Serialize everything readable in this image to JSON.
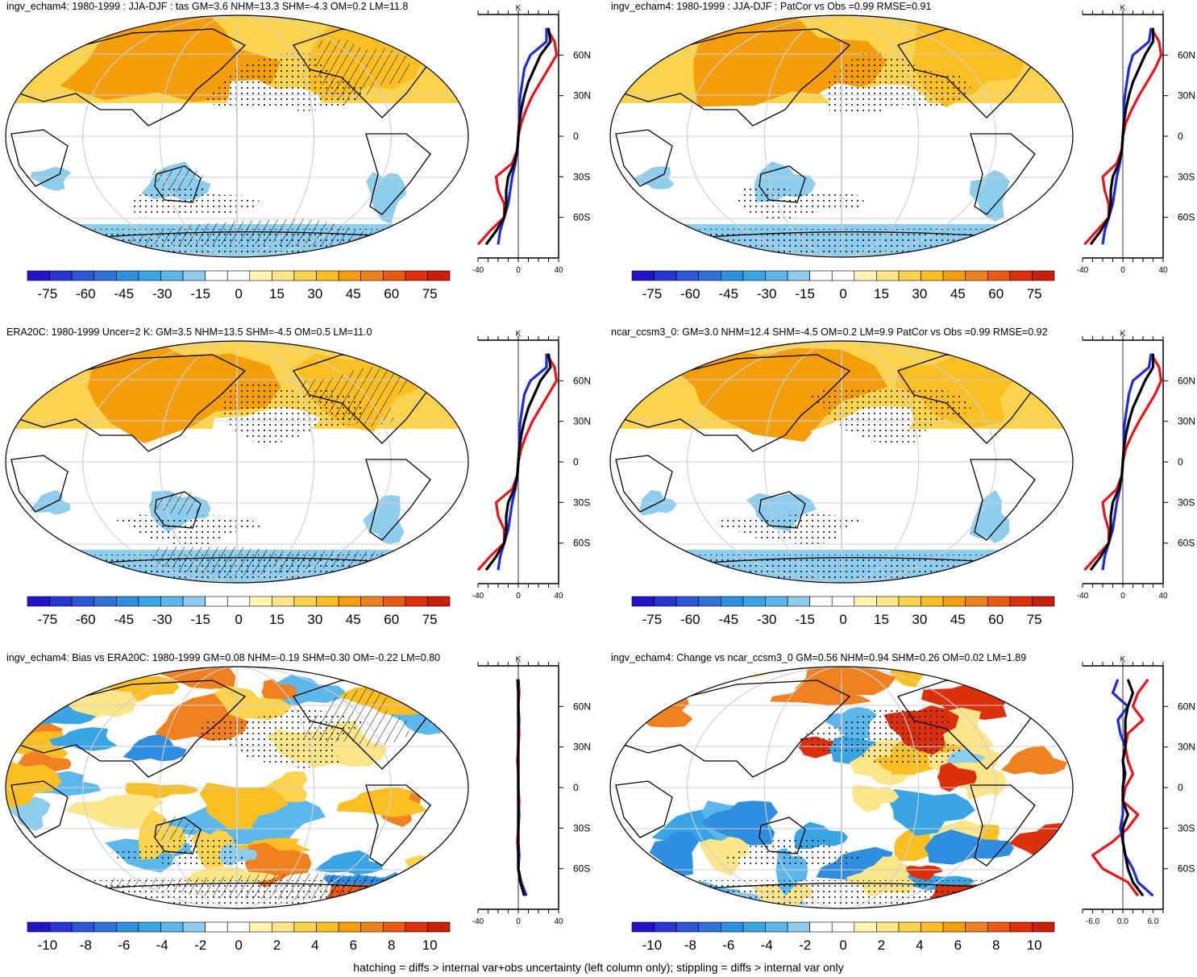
{
  "footer": "hatching = diffs > internal var+obs uncertainty (left column only); stippling = diffs > internal var only",
  "colors": {
    "warm": [
      "#fff6b3",
      "#fde68a",
      "#fcd34d",
      "#fbbf24",
      "#f59e0b",
      "#f08020",
      "#ea5a14",
      "#dc2f0c",
      "#c81e0a"
    ],
    "cool": [
      "#8ecdee",
      "#5cb8ea",
      "#39a5e4",
      "#2f8ee0",
      "#2f72dc",
      "#2c55d8",
      "#2835d2",
      "#2414c8"
    ],
    "profile_obs": "#e8131b",
    "profile_model": "#1e2bd6",
    "profile_mean": "#000000"
  },
  "panels": [
    {
      "title": "ingv_echam4: 1980-1999 : JJA-DJF : tas GM=3.6 NHM=13.3 SHM=-4.3 OM=0.2 LM=11.8",
      "colorbar_ticks": [
        "-75",
        "-60",
        "-45",
        "-30",
        "-15",
        "0",
        "15",
        "30",
        "45",
        "60",
        "75"
      ],
      "profile": {
        "unit": "K",
        "xticks": [
          "-40",
          "0",
          "40"
        ],
        "xrange": [
          -40,
          40
        ],
        "has_blue": true
      }
    },
    {
      "title": "ingv_echam4: 1980-1999 : JJA-DJF : PatCor vs Obs =0.99 RMSE=0.91",
      "colorbar_ticks": [
        "-75",
        "-60",
        "-45",
        "-30",
        "-15",
        "0",
        "15",
        "30",
        "45",
        "60",
        "75"
      ],
      "profile": {
        "unit": "K",
        "xticks": [
          "-40",
          "0",
          "40"
        ],
        "xrange": [
          -40,
          40
        ],
        "has_blue": true
      }
    },
    {
      "title": "ERA20C: 1980-1999 Uncer=2 K: GM=3.5 NHM=13.5 SHM=-4.5 OM=0.5 LM=11.0",
      "colorbar_ticks": [
        "-75",
        "-60",
        "-45",
        "-30",
        "-15",
        "0",
        "15",
        "30",
        "45",
        "60",
        "75"
      ],
      "profile": {
        "unit": "K",
        "xticks": [
          "-40",
          "0",
          "40"
        ],
        "xrange": [
          -40,
          40
        ],
        "has_blue": true
      }
    },
    {
      "title": "ncar_ccsm3_0: GM=3.0 NHM=12.4 SHM=-4.5 OM=0.2 LM=9.9 PatCor vs Obs =0.99 RMSE=0.92",
      "colorbar_ticks": [
        "-75",
        "-60",
        "-45",
        "-30",
        "-15",
        "0",
        "15",
        "30",
        "45",
        "60",
        "75"
      ],
      "profile": {
        "unit": "K",
        "xticks": [
          "-40",
          "0",
          "40"
        ],
        "xrange": [
          -40,
          40
        ],
        "has_blue": true
      }
    },
    {
      "title": "ingv_echam4: Bias vs ERA20C: 1980-1999 GM=0.08 NHM=-0.19 SHM=0.30 OM=-0.22 LM=0.80",
      "colorbar_ticks": [
        "-10",
        "-8",
        "-6",
        "-4",
        "-2",
        "0",
        "2",
        "4",
        "6",
        "8",
        "10"
      ],
      "profile": {
        "unit": "K",
        "xticks": [
          "-40",
          "0",
          "40"
        ],
        "xrange": [
          -40,
          40
        ],
        "has_blue": true
      }
    },
    {
      "title": "ingv_echam4: Change vs ncar_ccsm3_0 GM=0.56 NHM=0.94 SHM=0.26 OM=0.02 LM=1.89",
      "colorbar_ticks": [
        "-10",
        "-8",
        "-6",
        "-4",
        "-2",
        "0",
        "2",
        "4",
        "6",
        "8",
        "10"
      ],
      "profile": {
        "unit": "K",
        "xticks": [
          "-6.0",
          "0.0",
          "6.0"
        ],
        "xrange": [
          -8,
          8
        ],
        "has_blue": true
      }
    }
  ],
  "chart_data": [
    {
      "type": "heatmap",
      "title": "ingv_echam4: 1980-1999 : JJA-DJF : tas GM=3.6 NHM=13.3 SHM=-4.3 OM=0.2 LM=11.8",
      "lat_labels": [
        "60N",
        "30N",
        "0",
        "30S",
        "60S"
      ],
      "colorbar_ticks": [
        -75,
        -60,
        -45,
        -30,
        -15,
        0,
        15,
        30,
        45,
        60,
        75
      ]
    },
    {
      "type": "line",
      "unit": "K",
      "xlim": [
        -40,
        40
      ],
      "xticks": [
        -40,
        0,
        40
      ],
      "lat": [
        80,
        70,
        60,
        50,
        40,
        30,
        20,
        10,
        0,
        -10,
        -20,
        -30,
        -40,
        -50,
        -60,
        -70,
        -80
      ],
      "series": [
        {
          "values": [
            28,
            36,
            38,
            30,
            22,
            14,
            8,
            3,
            0,
            -1,
            -6,
            -22,
            -20,
            -14,
            -14,
            -28,
            -40
          ]
        },
        {
          "values": [
            28,
            28,
            12,
            6,
            4,
            2,
            1,
            1,
            0,
            -1,
            -3,
            -6,
            -8,
            -10,
            -14,
            -18,
            -20
          ]
        },
        {
          "values": [
            30,
            32,
            22,
            16,
            10,
            6,
            3,
            1,
            0,
            -1,
            -4,
            -10,
            -12,
            -12,
            -14,
            -22,
            -32
          ]
        }
      ]
    },
    {
      "type": "heatmap",
      "title": "ingv_echam4: 1980-1999 : JJA-DJF : PatCor vs Obs =0.99 RMSE=0.91",
      "lat_labels": [
        "60N",
        "30N",
        "0",
        "30S",
        "60S"
      ],
      "colorbar_ticks": [
        -75,
        -60,
        -45,
        -30,
        -15,
        0,
        15,
        30,
        45,
        60,
        75
      ]
    },
    {
      "type": "line",
      "unit": "K",
      "xlim": [
        -40,
        40
      ],
      "xticks": [
        -40,
        0,
        40
      ],
      "lat": [
        80,
        70,
        60,
        50,
        40,
        30,
        20,
        10,
        0,
        -10,
        -20,
        -30,
        -40,
        -50,
        -60,
        -70,
        -80
      ],
      "series": [
        {
          "values": [
            28,
            36,
            38,
            32,
            24,
            16,
            9,
            3,
            0,
            -1,
            -6,
            -20,
            -18,
            -14,
            -14,
            -26,
            -38
          ]
        },
        {
          "values": [
            28,
            26,
            10,
            6,
            4,
            2,
            1,
            1,
            0,
            -1,
            -3,
            -6,
            -8,
            -10,
            -14,
            -18,
            -20
          ]
        },
        {
          "values": [
            30,
            30,
            22,
            16,
            10,
            6,
            3,
            1,
            0,
            -1,
            -4,
            -10,
            -12,
            -12,
            -14,
            -22,
            -32
          ]
        }
      ]
    },
    {
      "type": "heatmap",
      "title": "ERA20C: 1980-1999 Uncer=2 K: GM=3.5 NHM=13.5 SHM=-4.5 OM=0.5 LM=11.0",
      "lat_labels": [
        "60N",
        "30N",
        "0",
        "30S",
        "60S"
      ],
      "colorbar_ticks": [
        -75,
        -60,
        -45,
        -30,
        -15,
        0,
        15,
        30,
        45,
        60,
        75
      ]
    },
    {
      "type": "line",
      "unit": "K",
      "xlim": [
        -40,
        40
      ],
      "xticks": [
        -40,
        0,
        40
      ],
      "lat": [
        80,
        70,
        60,
        50,
        40,
        30,
        20,
        10,
        0,
        -10,
        -20,
        -30,
        -40,
        -50,
        -60,
        -70,
        -80
      ],
      "series": [
        {
          "values": [
            28,
            36,
            38,
            30,
            22,
            14,
            8,
            3,
            0,
            -1,
            -6,
            -22,
            -20,
            -14,
            -14,
            -28,
            -40
          ]
        },
        {
          "values": [
            28,
            28,
            12,
            6,
            4,
            2,
            1,
            1,
            0,
            -1,
            -3,
            -6,
            -8,
            -10,
            -14,
            -18,
            -20
          ]
        },
        {
          "values": [
            30,
            32,
            22,
            16,
            10,
            6,
            3,
            1,
            0,
            -1,
            -4,
            -10,
            -12,
            -12,
            -14,
            -22,
            -32
          ]
        }
      ]
    },
    {
      "type": "heatmap",
      "title": "ncar_ccsm3_0: GM=3.0 NHM=12.4 SHM=-4.5 OM=0.2 LM=9.9 PatCor vs Obs =0.99 RMSE=0.92",
      "lat_labels": [
        "60N",
        "30N",
        "0",
        "30S",
        "60S"
      ],
      "colorbar_ticks": [
        -75,
        -60,
        -45,
        -30,
        -15,
        0,
        15,
        30,
        45,
        60,
        75
      ]
    },
    {
      "type": "line",
      "unit": "K",
      "xlim": [
        -40,
        40
      ],
      "xticks": [
        -40,
        0,
        40
      ],
      "lat": [
        80,
        70,
        60,
        50,
        40,
        30,
        20,
        10,
        0,
        -10,
        -20,
        -30,
        -40,
        -50,
        -60,
        -70,
        -80
      ],
      "series": [
        {
          "values": [
            28,
            36,
            38,
            32,
            24,
            16,
            9,
            3,
            0,
            -1,
            -6,
            -20,
            -18,
            -14,
            -14,
            -26,
            -38
          ]
        },
        {
          "values": [
            28,
            26,
            10,
            6,
            4,
            2,
            1,
            1,
            0,
            -1,
            -3,
            -6,
            -8,
            -10,
            -14,
            -18,
            -20
          ]
        },
        {
          "values": [
            30,
            30,
            22,
            16,
            10,
            6,
            3,
            1,
            0,
            -1,
            -4,
            -10,
            -12,
            -12,
            -14,
            -22,
            -32
          ]
        }
      ]
    },
    {
      "type": "heatmap",
      "title": "ingv_echam4: Bias vs ERA20C: 1980-1999 GM=0.08 NHM=-0.19 SHM=0.30 OM=-0.22 LM=0.80",
      "lat_labels": [
        "60N",
        "30N",
        "0",
        "30S",
        "60S"
      ],
      "colorbar_ticks": [
        -10,
        -8,
        -6,
        -4,
        -2,
        0,
        2,
        4,
        6,
        8,
        10
      ]
    },
    {
      "type": "line",
      "unit": "K",
      "xlim": [
        -40,
        40
      ],
      "xticks": [
        -40,
        0,
        40
      ],
      "lat": [
        80,
        70,
        60,
        50,
        40,
        30,
        20,
        10,
        0,
        -10,
        -20,
        -30,
        -40,
        -50,
        -60,
        -70,
        -80
      ],
      "series": [
        {
          "values": [
            0,
            1,
            0,
            0,
            1,
            0,
            -1,
            0,
            0,
            1,
            0,
            0,
            -1,
            0,
            0,
            2,
            8
          ]
        },
        {
          "values": [
            -1,
            0,
            0,
            1,
            0,
            0,
            0,
            0,
            0,
            0,
            1,
            0,
            0,
            1,
            0,
            3,
            8
          ]
        },
        {
          "values": [
            0,
            0,
            0,
            0,
            0,
            0,
            0,
            0,
            0,
            0,
            0,
            0,
            0,
            0,
            0,
            2,
            6
          ]
        }
      ]
    },
    {
      "type": "heatmap",
      "title": "ingv_echam4: Change vs ncar_ccsm3_0 GM=0.56 NHM=0.94 SHM=0.26 OM=0.02 LM=1.89",
      "lat_labels": [
        "60N",
        "30N",
        "0",
        "30S",
        "60S"
      ],
      "colorbar_ticks": [
        -10,
        -8,
        -6,
        -4,
        -2,
        0,
        2,
        4,
        6,
        8,
        10
      ]
    },
    {
      "type": "line",
      "unit": "K",
      "xlim": [
        -8,
        8
      ],
      "xticks": [
        -6.0,
        0.0,
        6.0
      ],
      "lat": [
        80,
        70,
        60,
        50,
        40,
        30,
        20,
        10,
        0,
        -10,
        -20,
        -30,
        -40,
        -50,
        -60,
        -70,
        -80
      ],
      "series": [
        {
          "values": [
            5,
            3,
            2,
            4,
            1,
            0.5,
            1,
            2,
            0.5,
            0,
            3,
            1,
            -2,
            -6,
            -4,
            1,
            3
          ]
        },
        {
          "values": [
            -1,
            -2,
            1,
            -1,
            -0.5,
            0.5,
            0,
            0.5,
            0,
            0,
            0,
            -0.5,
            0,
            0.5,
            2,
            3,
            6
          ]
        },
        {
          "values": [
            1,
            2,
            1,
            0.5,
            0.5,
            0.5,
            0,
            0.3,
            0,
            0,
            1,
            0,
            0,
            0.5,
            1,
            2,
            4
          ]
        }
      ]
    }
  ]
}
